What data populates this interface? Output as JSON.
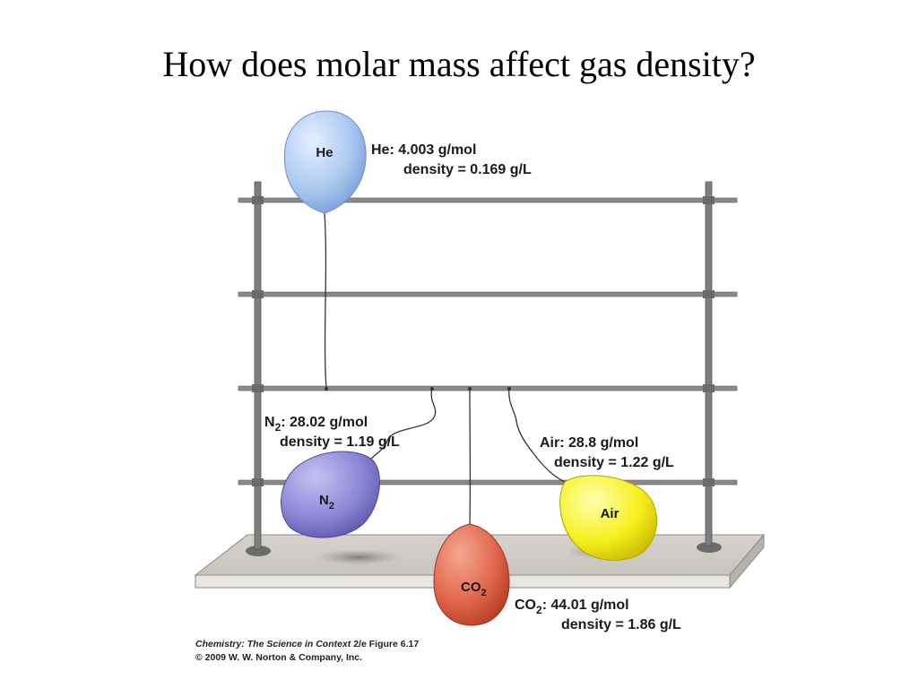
{
  "title": "How does molar mass affect gas density?",
  "balloons": [
    {
      "id": "he",
      "label": "He",
      "formula": "He",
      "molar_mass": "4.003 g/mol",
      "density": "density = 0.169 g/L",
      "color": "#a9c8f0"
    },
    {
      "id": "n2",
      "label": "N",
      "label_sub": "2",
      "formula": "N",
      "formula_sub": "2",
      "molar_mass": "28.02 g/mol",
      "density": "density = 1.19 g/L",
      "color": "#8b86d6"
    },
    {
      "id": "co2",
      "label": "CO",
      "label_sub": "2",
      "formula": "CO",
      "formula_sub": "2",
      "molar_mass": "44.01 g/mol",
      "density": "density = 1.86 g/L",
      "color": "#e0664a"
    },
    {
      "id": "air",
      "label": "Air",
      "formula": "Air",
      "molar_mass": "28.8 g/mol",
      "density": "density = 1.22 g/L",
      "color": "#f6f01a"
    }
  ],
  "credit": {
    "book": "Chemistry: The Science in Context",
    "edition": "2/e",
    "figure": "Figure 6.17",
    "copyright": "© 2009 W. W. Norton & Company, Inc."
  }
}
